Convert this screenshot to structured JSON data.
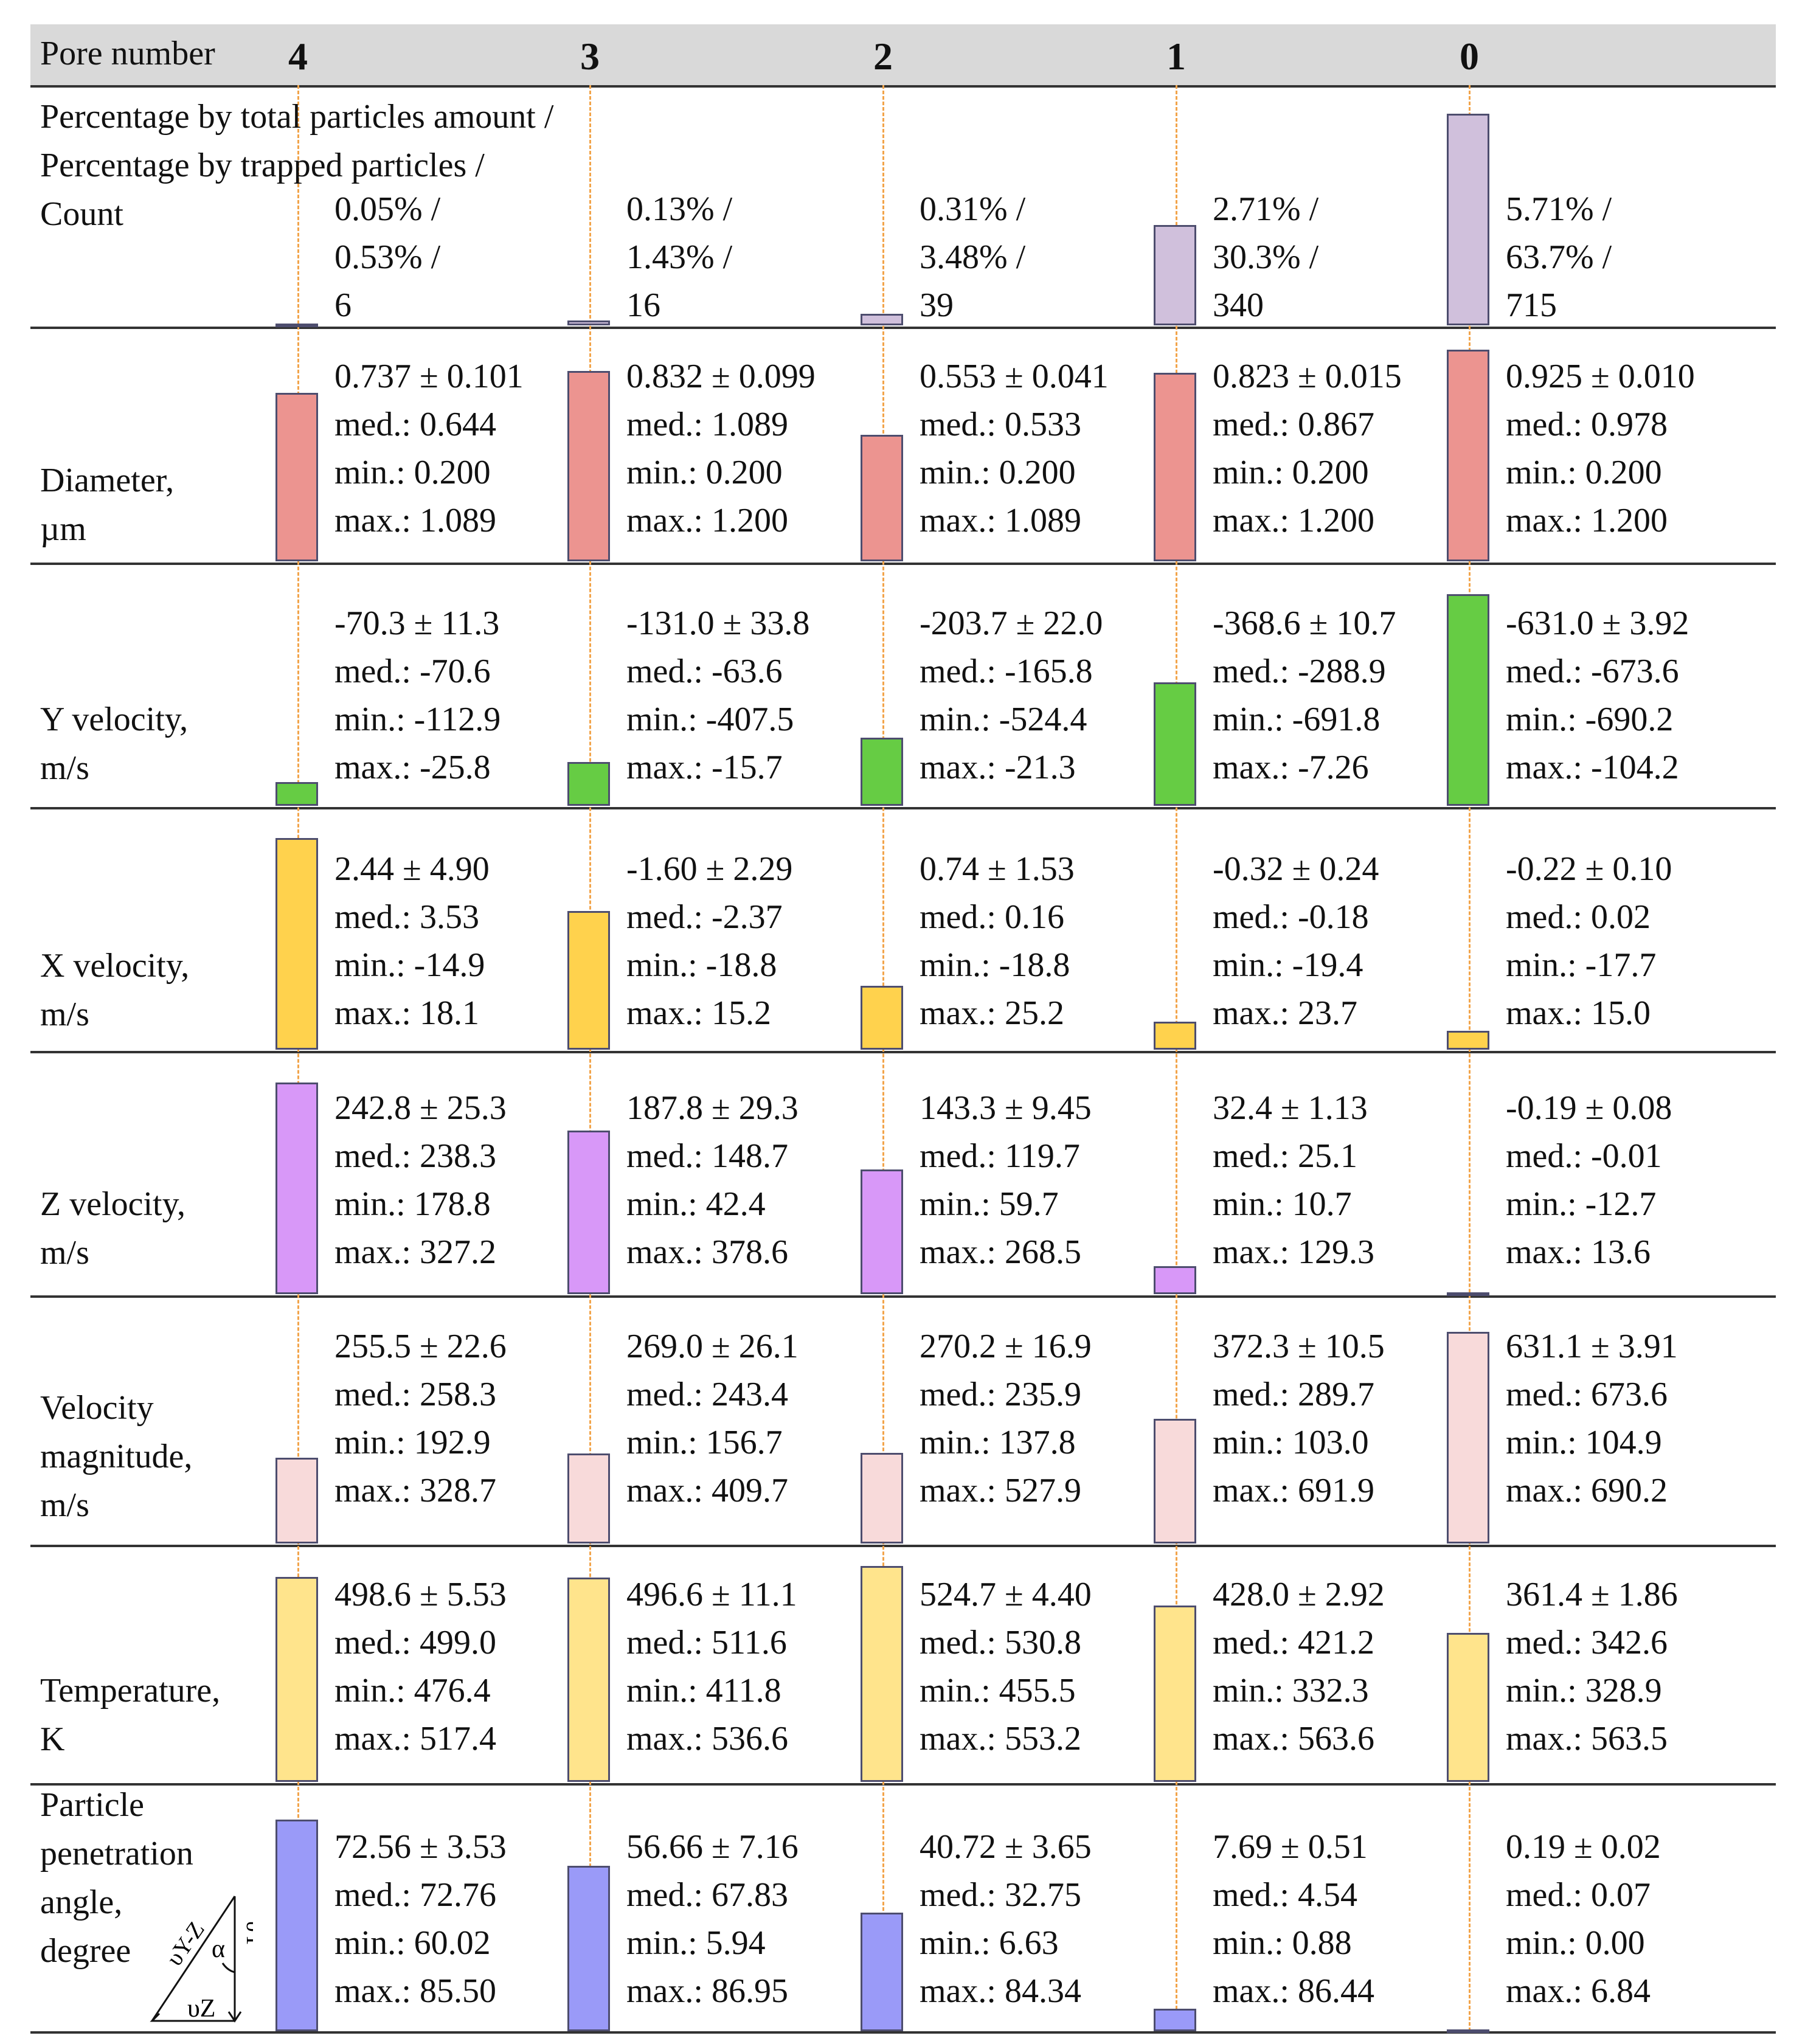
{
  "header": {
    "label": "Pore number",
    "pores": [
      "4",
      "3",
      "2",
      "1",
      "0"
    ]
  },
  "chart_data": {
    "type": "table",
    "pores": [
      "4",
      "3",
      "2",
      "1",
      "0"
    ],
    "rows": [
      {
        "id": "pct",
        "label": [
          "Percentage by total particles amount /",
          "Percentage by trapped particles /",
          "Count"
        ],
        "color": "#d0c0dc",
        "bar_fraction": [
          0.01,
          0.022,
          0.055,
          0.475,
          1.0
        ],
        "values": [
          [
            "0.05% /",
            "0.53% /",
            "6"
          ],
          [
            "0.13% /",
            "1.43% /",
            "16"
          ],
          [
            "0.31% /",
            "3.48% /",
            "39"
          ],
          [
            "2.71% /",
            "30.3% /",
            "340"
          ],
          [
            "5.71% /",
            "63.7% /",
            "715"
          ]
        ]
      },
      {
        "id": "diameter",
        "label": [
          "Diameter,",
          "µm"
        ],
        "color": "#ec9490",
        "bar_fraction": [
          0.797,
          0.9,
          0.598,
          0.89,
          1.0
        ],
        "values": [
          [
            "0.737 ± 0.101",
            "med.: 0.644",
            "min.: 0.200",
            "max.: 1.089"
          ],
          [
            "0.832 ± 0.099",
            "med.: 1.089",
            "min.: 0.200",
            "max.: 1.200"
          ],
          [
            "0.553 ± 0.041",
            "med.: 0.533",
            "min.: 0.200",
            "max.: 1.089"
          ],
          [
            "0.823 ± 0.015",
            "med.: 0.867",
            "min.: 0.200",
            "max.: 1.200"
          ],
          [
            "0.925 ± 0.010",
            "med.: 0.978",
            "min.: 0.200",
            "max.: 1.200"
          ]
        ]
      },
      {
        "id": "yvel",
        "label": [
          "Y velocity,",
          "m/s"
        ],
        "color": "#66cc44",
        "bar_fraction": [
          0.111,
          0.208,
          0.323,
          0.584,
          1.0
        ],
        "values": [
          [
            "-70.3 ± 11.3",
            "med.: -70.6",
            "min.: -112.9",
            "max.: -25.8"
          ],
          [
            "-131.0 ± 33.8",
            "med.: -63.6",
            "min.: -407.5",
            "max.: -15.7"
          ],
          [
            "-203.7 ± 22.0",
            "med.: -165.8",
            "min.: -524.4",
            "max.: -21.3"
          ],
          [
            "-368.6 ± 10.7",
            "med.: -288.9",
            "min.: -691.8",
            "max.: -7.26"
          ],
          [
            "-631.0 ± 3.92",
            "med.: -673.6",
            "min.: -690.2",
            "max.: -104.2"
          ]
        ]
      },
      {
        "id": "xvel",
        "label": [
          "X velocity,",
          "m/s"
        ],
        "color": "#ffd24d",
        "bar_fraction": [
          1.0,
          0.656,
          0.303,
          0.131,
          0.09
        ],
        "values": [
          [
            "2.44 ± 4.90",
            "med.: 3.53",
            "min.: -14.9",
            "max.: 18.1"
          ],
          [
            "-1.60 ± 2.29",
            "med.: -2.37",
            "min.: -18.8",
            "max.: 15.2"
          ],
          [
            "0.74 ± 1.53",
            "med.: 0.16",
            "min.: -18.8",
            "max.: 25.2"
          ],
          [
            "-0.32 ± 0.24",
            "med.: -0.18",
            "min.: -19.4",
            "max.: 23.7"
          ],
          [
            "-0.22 ± 0.10",
            "med.: 0.02",
            "min.: -17.7",
            "max.: 15.0"
          ]
        ]
      },
      {
        "id": "zvel",
        "label": [
          "Z velocity,",
          "m/s"
        ],
        "color": "#d898f8",
        "bar_fraction": [
          1.0,
          0.773,
          0.59,
          0.133,
          0.004
        ],
        "values": [
          [
            "242.8 ± 25.3",
            "med.: 238.3",
            "min.: 178.8",
            "max.: 327.2"
          ],
          [
            "187.8 ± 29.3",
            "med.: 148.7",
            "min.: 42.4",
            "max.: 378.6"
          ],
          [
            "143.3 ± 9.45",
            "med.: 119.7",
            "min.: 59.7",
            "max.: 268.5"
          ],
          [
            "32.4 ± 1.13",
            "med.: 25.1",
            "min.: 10.7",
            "max.: 129.3"
          ],
          [
            "-0.19 ± 0.08",
            "med.: -0.01",
            "min.: -12.7",
            "max.: 13.6"
          ]
        ]
      },
      {
        "id": "vmag",
        "label": [
          "Velocity",
          "magnitude,",
          "m/s"
        ],
        "color": "#f8dada",
        "bar_fraction": [
          0.405,
          0.426,
          0.428,
          0.59,
          1.0
        ],
        "values": [
          [
            "255.5 ± 22.6",
            "med.: 258.3",
            "min.: 192.9",
            "max.: 328.7"
          ],
          [
            "269.0 ± 26.1",
            "med.: 243.4",
            "min.: 156.7",
            "max.: 409.7"
          ],
          [
            "270.2 ± 16.9",
            "med.: 235.9",
            "min.: 137.8",
            "max.: 527.9"
          ],
          [
            "372.3 ± 10.5",
            "med.: 289.7",
            "min.: 103.0",
            "max.: 691.9"
          ],
          [
            "631.1 ± 3.91",
            "med.: 673.6",
            "min.: 104.9",
            "max.: 690.2"
          ]
        ]
      },
      {
        "id": "temp",
        "label": [
          "Temperature,",
          "K"
        ],
        "color": "#ffe48c",
        "bar_fraction": [
          0.95,
          0.946,
          1.0,
          0.816,
          0.689
        ],
        "values": [
          [
            "498.6 ± 5.53",
            "med.: 499.0",
            "min.: 476.4",
            "max.: 517.4"
          ],
          [
            "496.6 ± 11.1",
            "med.: 511.6",
            "min.: 411.8",
            "max.: 536.6"
          ],
          [
            "524.7 ± 4.40",
            "med.: 530.8",
            "min.: 455.5",
            "max.: 553.2"
          ],
          [
            "428.0 ± 2.92",
            "med.: 421.2",
            "min.: 332.3",
            "max.: 563.6"
          ],
          [
            "361.4 ± 1.86",
            "med.: 342.6",
            "min.: 328.9",
            "max.: 563.5"
          ]
        ]
      },
      {
        "id": "angle",
        "label": [
          "Particle",
          "penetration",
          "angle,",
          "degree"
        ],
        "color": "#9a9af8",
        "bar_fraction": [
          1.0,
          0.781,
          0.561,
          0.106,
          0.003
        ],
        "values": [
          [
            "72.56 ± 3.53",
            "med.: 72.76",
            "min.: 60.02",
            "max.: 85.50"
          ],
          [
            "56.66 ± 7.16",
            "med.: 67.83",
            "min.: 5.94",
            "max.: 86.95"
          ],
          [
            "40.72 ± 3.65",
            "med.: 32.75",
            "min.: 6.63",
            "max.: 84.34"
          ],
          [
            "7.69 ± 0.51",
            "med.: 4.54",
            "min.: 0.88",
            "max.: 86.44"
          ],
          [
            "0.19 ± 0.02",
            "med.: 0.07",
            "min.: 0.00",
            "max.: 6.84"
          ]
        ]
      }
    ],
    "angle_diagram": {
      "labels": [
        "υY-Z",
        "α",
        "υY",
        "υZ"
      ]
    }
  }
}
